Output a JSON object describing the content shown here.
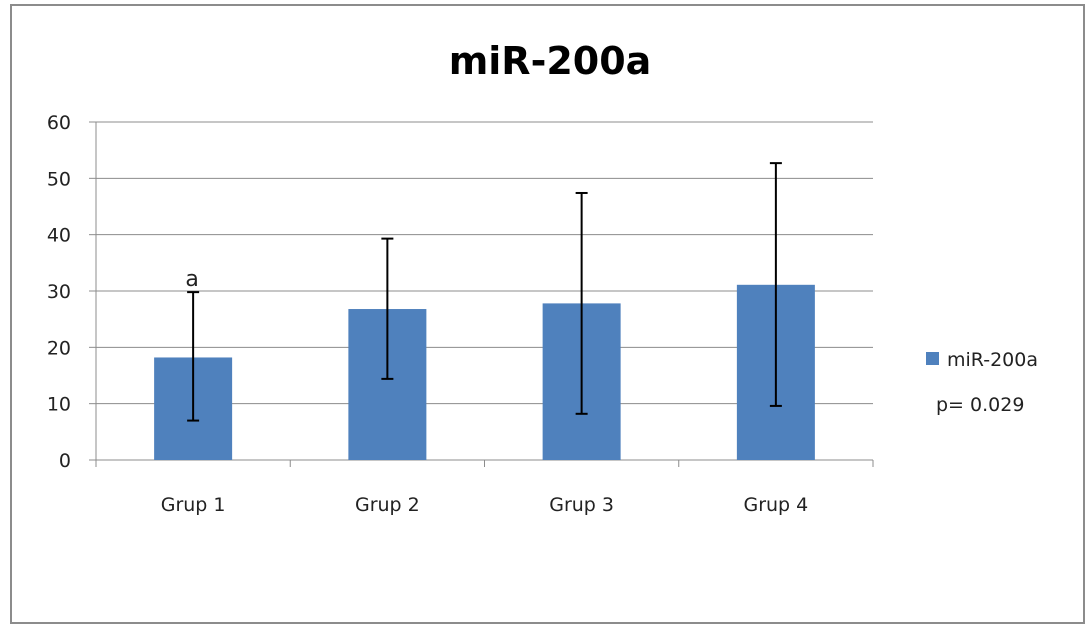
{
  "chart_data": {
    "type": "bar",
    "title": "miR-200a",
    "categories": [
      "Grup 1",
      "Grup 2",
      "Grup 3",
      "Grup 4"
    ],
    "series": [
      {
        "name": "miR-200a",
        "values": [
          18.2,
          26.8,
          27.8,
          31.1
        ],
        "error_low": [
          7.0,
          14.4,
          8.2,
          9.6
        ],
        "error_high": [
          29.8,
          39.3,
          47.4,
          52.7
        ],
        "color": "#4f81bd"
      }
    ],
    "annotations": [
      {
        "category_index": 0,
        "text": "a"
      }
    ],
    "ylim": [
      0,
      60
    ],
    "yticks": [
      0,
      10,
      20,
      30,
      40,
      50,
      60
    ],
    "grid": true,
    "legend": {
      "position": "right",
      "entries": [
        "miR-200a"
      ],
      "note": "p= 0.029"
    }
  }
}
